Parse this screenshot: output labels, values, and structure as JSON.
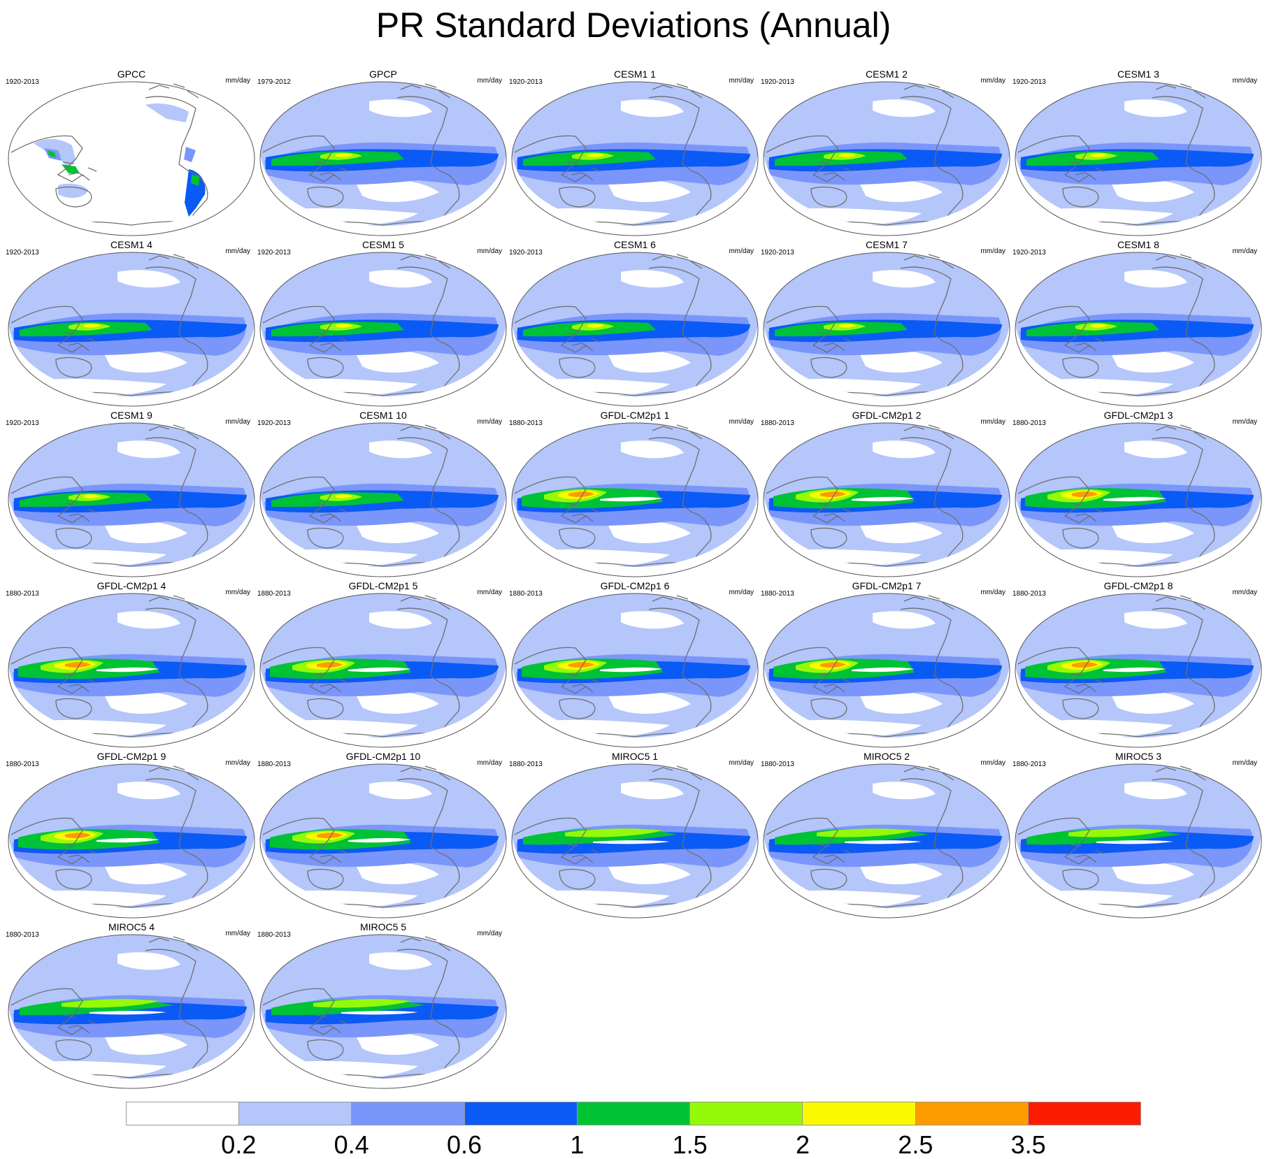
{
  "title": "PR Standard Deviations (Annual)",
  "units": "mm/day",
  "panels": [
    {
      "name": "GPCC",
      "period": "1920-2013",
      "variant": "gpcc"
    },
    {
      "name": "GPCP",
      "period": "1979-2012",
      "variant": "gpcp"
    },
    {
      "name": "CESM1 1",
      "period": "1920-2013",
      "variant": "cesm"
    },
    {
      "name": "CESM1 2",
      "period": "1920-2013",
      "variant": "cesm"
    },
    {
      "name": "CESM1 3",
      "period": "1920-2013",
      "variant": "cesm"
    },
    {
      "name": "CESM1 4",
      "period": "1920-2013",
      "variant": "cesm"
    },
    {
      "name": "CESM1 5",
      "period": "1920-2013",
      "variant": "cesm"
    },
    {
      "name": "CESM1 6",
      "period": "1920-2013",
      "variant": "cesm"
    },
    {
      "name": "CESM1 7",
      "period": "1920-2013",
      "variant": "cesm"
    },
    {
      "name": "CESM1 8",
      "period": "1920-2013",
      "variant": "cesm"
    },
    {
      "name": "CESM1 9",
      "period": "1920-2013",
      "variant": "cesm"
    },
    {
      "name": "CESM1 10",
      "period": "1920-2013",
      "variant": "cesm"
    },
    {
      "name": "GFDL-CM2p1 1",
      "period": "1880-2013",
      "variant": "gfdl"
    },
    {
      "name": "GFDL-CM2p1 2",
      "period": "1880-2013",
      "variant": "gfdl"
    },
    {
      "name": "GFDL-CM2p1 3",
      "period": "1880-2013",
      "variant": "gfdl"
    },
    {
      "name": "GFDL-CM2p1 4",
      "period": "1880-2013",
      "variant": "gfdl"
    },
    {
      "name": "GFDL-CM2p1 5",
      "period": "1880-2013",
      "variant": "gfdl"
    },
    {
      "name": "GFDL-CM2p1 6",
      "period": "1880-2013",
      "variant": "gfdl"
    },
    {
      "name": "GFDL-CM2p1 7",
      "period": "1880-2013",
      "variant": "gfdl"
    },
    {
      "name": "GFDL-CM2p1 8",
      "period": "1880-2013",
      "variant": "gfdl"
    },
    {
      "name": "GFDL-CM2p1 9",
      "period": "1880-2013",
      "variant": "gfdl"
    },
    {
      "name": "GFDL-CM2p1 10",
      "period": "1880-2013",
      "variant": "gfdl"
    },
    {
      "name": "MIROC5 1",
      "period": "1880-2013",
      "variant": "miroc"
    },
    {
      "name": "MIROC5 2",
      "period": "1880-2013",
      "variant": "miroc"
    },
    {
      "name": "MIROC5 3",
      "period": "1880-2013",
      "variant": "miroc"
    },
    {
      "name": "MIROC5 4",
      "period": "1880-2013",
      "variant": "miroc"
    },
    {
      "name": "MIROC5 5",
      "period": "1880-2013",
      "variant": "miroc"
    }
  ],
  "colorbar": {
    "colors": [
      "#ffffff",
      "#b4c6fa",
      "#7b96fa",
      "#0a5af5",
      "#00c235",
      "#95f90a",
      "#fbf900",
      "#fd9b00",
      "#fb1c00"
    ],
    "labels": [
      "0.2",
      "0.4",
      "0.6",
      "1",
      "1.5",
      "2",
      "2.5",
      "3.5"
    ]
  }
}
